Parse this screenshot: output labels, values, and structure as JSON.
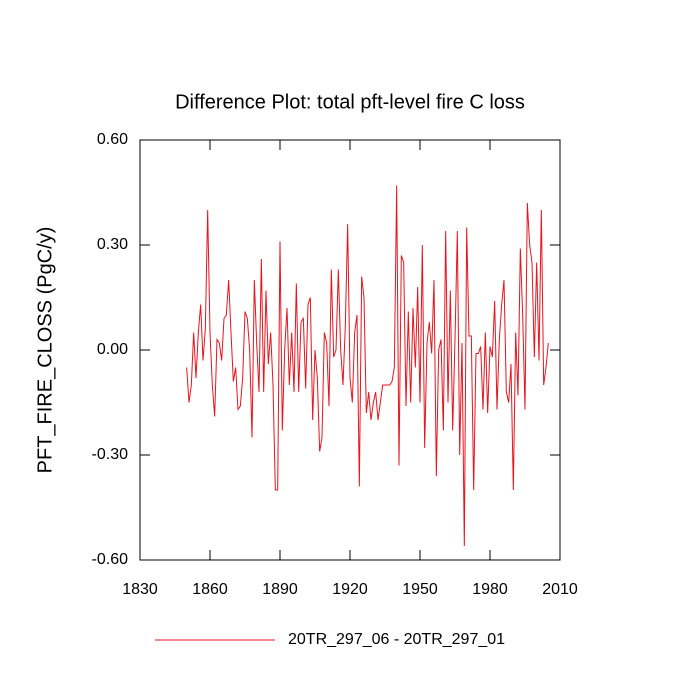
{
  "chart_data": {
    "type": "line",
    "title": "Difference Plot: total pft-level fire C loss",
    "y_label": "PFT_FIRE_CLOSS  (PgC/y)",
    "x": [
      1850,
      1851,
      1852,
      1853,
      1854,
      1855,
      1856,
      1857,
      1858,
      1859,
      1860,
      1861,
      1862,
      1863,
      1864,
      1865,
      1866,
      1867,
      1868,
      1869,
      1870,
      1871,
      1872,
      1873,
      1874,
      1875,
      1876,
      1877,
      1878,
      1879,
      1880,
      1881,
      1882,
      1883,
      1884,
      1885,
      1886,
      1887,
      1888,
      1889,
      1890,
      1891,
      1892,
      1893,
      1894,
      1895,
      1896,
      1897,
      1898,
      1899,
      1900,
      1901,
      1902,
      1903,
      1904,
      1905,
      1906,
      1907,
      1908,
      1909,
      1910,
      1911,
      1912,
      1913,
      1914,
      1915,
      1916,
      1917,
      1918,
      1919,
      1920,
      1921,
      1922,
      1923,
      1924,
      1925,
      1926,
      1927,
      1928,
      1929,
      1930,
      1931,
      1932,
      1933,
      1934,
      1935,
      1936,
      1937,
      1938,
      1939,
      1940,
      1941,
      1942,
      1943,
      1944,
      1945,
      1946,
      1947,
      1948,
      1949,
      1950,
      1951,
      1952,
      1953,
      1954,
      1955,
      1956,
      1957,
      1958,
      1959,
      1960,
      1961,
      1962,
      1963,
      1964,
      1965,
      1966,
      1967,
      1968,
      1969,
      1970,
      1971,
      1972,
      1973,
      1974,
      1975,
      1976,
      1977,
      1978,
      1979,
      1980,
      1981,
      1982,
      1983,
      1984,
      1985,
      1986,
      1987,
      1988,
      1989,
      1990,
      1991,
      1992,
      1993,
      1994,
      1995,
      1996,
      1997,
      1998,
      1999,
      2000,
      2001,
      2002,
      2003,
      2004,
      2005
    ],
    "series": [
      {
        "name": "20TR_297_06 - 20TR_297_01",
        "color": "#e8141e",
        "values": [
          -0.05,
          -0.15,
          -0.1,
          0.05,
          -0.08,
          0.05,
          0.13,
          -0.03,
          0.06,
          0.4,
          0.05,
          -0.1,
          -0.19,
          0.03,
          0.02,
          -0.03,
          0.09,
          0.1,
          0.2,
          0.05,
          -0.09,
          -0.05,
          -0.17,
          -0.16,
          -0.08,
          0.11,
          0.09,
          0.0,
          -0.25,
          0.2,
          0.02,
          -0.12,
          0.26,
          -0.12,
          0.17,
          -0.04,
          0.05,
          -0.1,
          -0.4,
          -0.4,
          0.31,
          -0.23,
          0.0,
          0.12,
          -0.1,
          0.05,
          -0.12,
          0.19,
          -0.12,
          0.08,
          0.09,
          -0.11,
          0.13,
          0.15,
          -0.2,
          0.0,
          -0.08,
          -0.29,
          -0.25,
          0.05,
          0.02,
          -0.16,
          0.23,
          -0.02,
          0.0,
          0.23,
          0.0,
          -0.1,
          0.07,
          0.36,
          -0.08,
          -0.15,
          0.05,
          0.1,
          -0.39,
          0.21,
          0.15,
          -0.18,
          -0.12,
          -0.2,
          -0.15,
          -0.12,
          -0.2,
          -0.15,
          -0.1,
          -0.1,
          -0.1,
          -0.1,
          -0.09,
          -0.05,
          0.47,
          -0.33,
          0.27,
          0.25,
          -0.16,
          0.11,
          -0.15,
          0.12,
          -0.05,
          0.18,
          -0.15,
          0.3,
          -0.28,
          0.02,
          0.08,
          -0.01,
          0.2,
          -0.36,
          0.0,
          0.03,
          -0.23,
          0.34,
          -0.15,
          0.17,
          -0.23,
          0.03,
          0.34,
          -0.3,
          0.02,
          -0.56,
          0.35,
          0.04,
          0.04,
          -0.4,
          -0.01,
          -0.01,
          0.01,
          -0.17,
          0.05,
          -0.18,
          0.01,
          -0.02,
          0.14,
          -0.17,
          0.03,
          0.13,
          0.2,
          -0.12,
          -0.15,
          -0.04,
          -0.4,
          0.05,
          -0.13,
          0.29,
          0.1,
          -0.17,
          0.42,
          0.3,
          0.25,
          -0.02,
          0.25,
          -0.03,
          0.4,
          -0.1,
          -0.05,
          0.02
        ]
      }
    ],
    "xlim": [
      1830,
      2010
    ],
    "xticks": [
      1830,
      1860,
      1890,
      1920,
      1950,
      1980,
      2010
    ],
    "ylim": [
      -0.6,
      0.6
    ],
    "yticks": [
      {
        "value": -0.6,
        "label": "-0.60"
      },
      {
        "value": -0.3,
        "label": "-0.30"
      },
      {
        "value": 0,
        "label": "0.00"
      },
      {
        "value": 0.3,
        "label": "0.30"
      },
      {
        "value": 0.6,
        "label": "0.60"
      }
    ],
    "grid": false
  }
}
